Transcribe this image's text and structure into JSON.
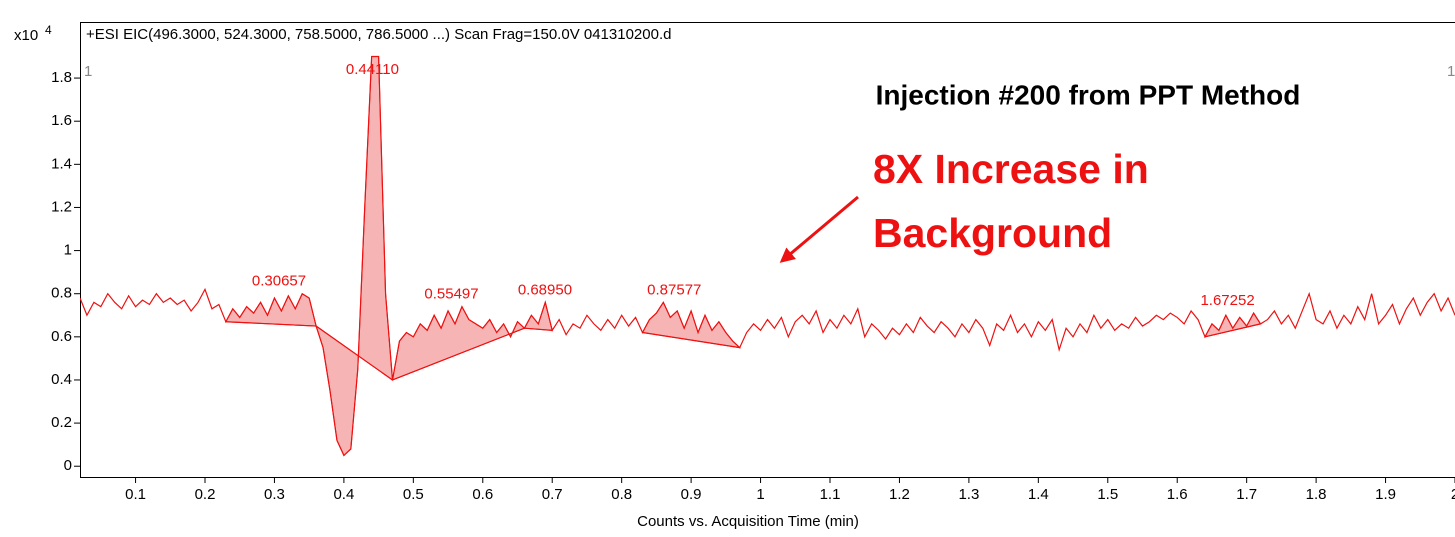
{
  "chart_data": {
    "type": "line",
    "header": "+ESI EIC(496.3000, 524.3000, 758.5000, 786.5000 ...) Scan Frag=150.0V 041310200.d",
    "y_multiplier": "x10",
    "y_exponent": "4",
    "cursor_labels": [
      "1",
      "1"
    ],
    "x_label": "Counts vs. Acquisition Time (min)",
    "annotations": [
      "Injection #200 from PPT Method",
      "8X Increase in",
      "Background"
    ],
    "color": "#ee1111",
    "fill_color": "#f6b4b4",
    "xlim": [
      0.02,
      2.0
    ],
    "ylim": [
      -0.05,
      2.06
    ],
    "xticks": [
      0.1,
      0.2,
      0.3,
      0.4,
      0.5,
      0.6,
      0.7,
      0.8,
      0.9,
      1,
      1.1,
      1.2,
      1.3,
      1.4,
      1.5,
      1.6,
      1.7,
      1.8,
      1.9,
      2
    ],
    "yticks": [
      0,
      0.2,
      0.4,
      0.6,
      0.8,
      1,
      1.2,
      1.4,
      1.6,
      1.8
    ],
    "x": [
      0.02,
      0.03,
      0.04,
      0.05,
      0.06,
      0.07,
      0.08,
      0.09,
      0.1,
      0.11,
      0.12,
      0.13,
      0.14,
      0.15,
      0.16,
      0.17,
      0.18,
      0.19,
      0.2,
      0.21,
      0.22,
      0.23,
      0.24,
      0.25,
      0.26,
      0.27,
      0.28,
      0.29,
      0.3,
      0.31,
      0.32,
      0.33,
      0.34,
      0.35,
      0.36,
      0.37,
      0.38,
      0.39,
      0.4,
      0.41,
      0.42,
      0.43,
      0.44,
      0.45,
      0.46,
      0.47,
      0.48,
      0.49,
      0.5,
      0.51,
      0.52,
      0.53,
      0.54,
      0.55,
      0.56,
      0.57,
      0.58,
      0.59,
      0.6,
      0.61,
      0.62,
      0.63,
      0.64,
      0.65,
      0.66,
      0.67,
      0.68,
      0.69,
      0.7,
      0.71,
      0.72,
      0.73,
      0.74,
      0.75,
      0.76,
      0.77,
      0.78,
      0.79,
      0.8,
      0.81,
      0.82,
      0.83,
      0.84,
      0.85,
      0.86,
      0.87,
      0.88,
      0.89,
      0.9,
      0.91,
      0.92,
      0.93,
      0.94,
      0.95,
      0.96,
      0.97,
      0.98,
      0.99,
      1,
      1.01,
      1.02,
      1.03,
      1.04,
      1.05,
      1.06,
      1.07,
      1.08,
      1.09,
      1.1,
      1.11,
      1.12,
      1.13,
      1.14,
      1.15,
      1.16,
      1.17,
      1.18,
      1.19,
      1.2,
      1.21,
      1.22,
      1.23,
      1.24,
      1.25,
      1.26,
      1.27,
      1.28,
      1.29,
      1.3,
      1.31,
      1.32,
      1.33,
      1.34,
      1.35,
      1.36,
      1.37,
      1.38,
      1.39,
      1.4,
      1.41,
      1.42,
      1.43,
      1.44,
      1.45,
      1.46,
      1.47,
      1.48,
      1.49,
      1.5,
      1.51,
      1.52,
      1.53,
      1.54,
      1.55,
      1.56,
      1.57,
      1.58,
      1.59,
      1.6,
      1.61,
      1.62,
      1.63,
      1.64,
      1.65,
      1.66,
      1.67,
      1.68,
      1.69,
      1.7,
      1.71,
      1.72,
      1.73,
      1.74,
      1.75,
      1.76,
      1.77,
      1.78,
      1.79,
      1.8,
      1.81,
      1.82,
      1.83,
      1.84,
      1.85,
      1.86,
      1.87,
      1.88,
      1.89,
      1.9,
      1.91,
      1.92,
      1.93,
      1.94,
      1.95,
      1.96,
      1.97,
      1.98,
      1.99,
      2
    ],
    "values": [
      0.78,
      0.7,
      0.76,
      0.74,
      0.8,
      0.76,
      0.73,
      0.79,
      0.74,
      0.77,
      0.75,
      0.8,
      0.76,
      0.78,
      0.75,
      0.77,
      0.72,
      0.76,
      0.82,
      0.73,
      0.75,
      0.67,
      0.73,
      0.69,
      0.74,
      0.71,
      0.76,
      0.7,
      0.78,
      0.72,
      0.79,
      0.73,
      0.8,
      0.78,
      0.65,
      0.55,
      0.35,
      0.12,
      0.05,
      0.08,
      0.45,
      1.2,
      1.9,
      1.9,
      0.8,
      0.4,
      0.58,
      0.62,
      0.6,
      0.66,
      0.63,
      0.7,
      0.64,
      0.72,
      0.66,
      0.74,
      0.68,
      0.66,
      0.64,
      0.68,
      0.62,
      0.66,
      0.6,
      0.67,
      0.64,
      0.7,
      0.66,
      0.76,
      0.63,
      0.68,
      0.61,
      0.66,
      0.64,
      0.7,
      0.66,
      0.63,
      0.68,
      0.64,
      0.7,
      0.65,
      0.69,
      0.62,
      0.68,
      0.71,
      0.76,
      0.69,
      0.72,
      0.64,
      0.72,
      0.62,
      0.7,
      0.63,
      0.67,
      0.62,
      0.58,
      0.55,
      0.62,
      0.66,
      0.63,
      0.68,
      0.64,
      0.69,
      0.6,
      0.67,
      0.7,
      0.66,
      0.72,
      0.62,
      0.68,
      0.64,
      0.7,
      0.66,
      0.73,
      0.6,
      0.66,
      0.63,
      0.59,
      0.64,
      0.61,
      0.66,
      0.62,
      0.69,
      0.65,
      0.62,
      0.67,
      0.64,
      0.6,
      0.66,
      0.62,
      0.68,
      0.64,
      0.56,
      0.66,
      0.63,
      0.7,
      0.62,
      0.66,
      0.6,
      0.67,
      0.63,
      0.68,
      0.54,
      0.64,
      0.6,
      0.66,
      0.62,
      0.7,
      0.64,
      0.68,
      0.63,
      0.66,
      0.64,
      0.69,
      0.65,
      0.67,
      0.7,
      0.68,
      0.71,
      0.69,
      0.66,
      0.72,
      0.68,
      0.6,
      0.66,
      0.63,
      0.7,
      0.64,
      0.69,
      0.65,
      0.71,
      0.66,
      0.68,
      0.72,
      0.66,
      0.7,
      0.64,
      0.72,
      0.8,
      0.68,
      0.66,
      0.72,
      0.64,
      0.7,
      0.66,
      0.74,
      0.68,
      0.8,
      0.66,
      0.7,
      0.75,
      0.66,
      0.73,
      0.78,
      0.7,
      0.76,
      0.8,
      0.72,
      0.78,
      0.7
    ],
    "peaks": {
      "rt": [
        0.30657,
        0.4411,
        0.55497,
        0.6895,
        0.87577,
        1.67252
      ],
      "rt_labels": [
        "0.30657",
        "0.44110",
        "0.55497",
        "0.68950",
        "0.87577",
        "1.67252"
      ],
      "start": [
        0.23,
        0.36,
        0.47,
        0.66,
        0.83,
        1.64
      ],
      "end": [
        0.36,
        0.47,
        0.66,
        0.7,
        0.97,
        1.72
      ]
    }
  }
}
